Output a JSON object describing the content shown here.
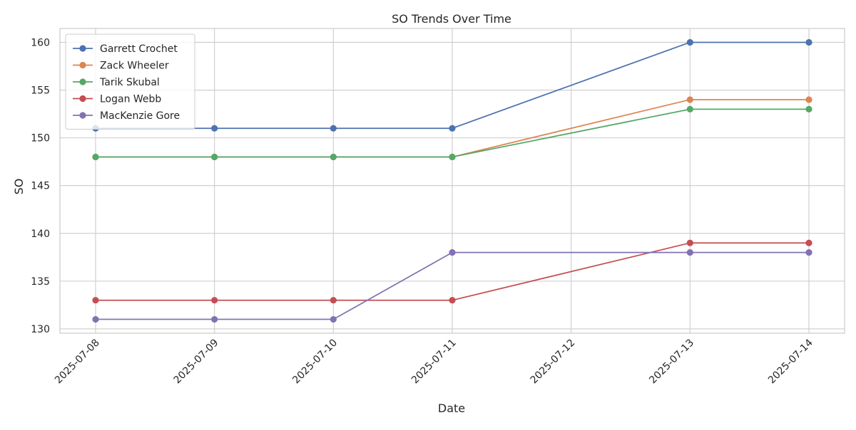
{
  "chart_data": {
    "type": "line",
    "title": "SO Trends Over Time",
    "xlabel": "Date",
    "ylabel": "SO",
    "x": [
      "2025-07-08",
      "2025-07-09",
      "2025-07-10",
      "2025-07-11",
      "2025-07-13",
      "2025-07-14"
    ],
    "x_ticks": [
      "2025-07-08",
      "2025-07-09",
      "2025-07-10",
      "2025-07-11",
      "2025-07-12",
      "2025-07-13",
      "2025-07-14"
    ],
    "x_range": [
      "2025-07-08",
      "2025-07-14"
    ],
    "y_ticks": [
      130,
      135,
      140,
      145,
      150,
      155,
      160
    ],
    "ylim": [
      129.55,
      161.45
    ],
    "grid": true,
    "legend_position": "top-left",
    "marker": "circle",
    "series": [
      {
        "name": "Garrett Crochet",
        "color": "#4c72b0",
        "values": [
          151,
          151,
          151,
          151,
          160,
          160
        ]
      },
      {
        "name": "Zack Wheeler",
        "color": "#dd8452",
        "values": [
          148,
          148,
          148,
          148,
          154,
          154
        ]
      },
      {
        "name": "Tarik Skubal",
        "color": "#55a868",
        "values": [
          148,
          148,
          148,
          148,
          153,
          153
        ]
      },
      {
        "name": "Logan Webb",
        "color": "#c44e52",
        "values": [
          133,
          133,
          133,
          133,
          139,
          139
        ]
      },
      {
        "name": "MacKenzie Gore",
        "color": "#8172b3",
        "values": [
          131,
          131,
          131,
          138,
          138,
          138
        ]
      }
    ]
  }
}
